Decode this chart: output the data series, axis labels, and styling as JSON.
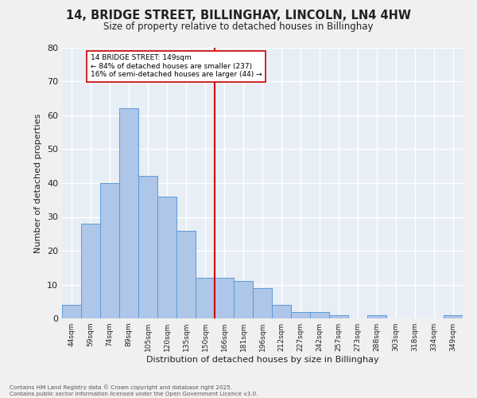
{
  "title": "14, BRIDGE STREET, BILLINGHAY, LINCOLN, LN4 4HW",
  "subtitle": "Size of property relative to detached houses in Billinghay",
  "xlabel": "Distribution of detached houses by size in Billinghay",
  "ylabel": "Number of detached properties",
  "bin_labels": [
    "44sqm",
    "59sqm",
    "74sqm",
    "89sqm",
    "105sqm",
    "120sqm",
    "135sqm",
    "150sqm",
    "166sqm",
    "181sqm",
    "196sqm",
    "212sqm",
    "227sqm",
    "242sqm",
    "257sqm",
    "273sqm",
    "288sqm",
    "303sqm",
    "318sqm",
    "334sqm",
    "349sqm"
  ],
  "bar_values": [
    4,
    28,
    40,
    62,
    42,
    36,
    26,
    12,
    12,
    11,
    9,
    4,
    2,
    2,
    1,
    0,
    1,
    0,
    0,
    0,
    1
  ],
  "bar_color": "#aec6e8",
  "bar_edge_color": "#5b9bd5",
  "vline_color": "#cc0000",
  "annotation_title": "14 BRIDGE STREET: 149sqm",
  "annotation_line1": "← 84% of detached houses are smaller (237)",
  "annotation_line2": "16% of semi-detached houses are larger (44) →",
  "annotation_box_color": "#ffffff",
  "annotation_box_edge": "#cc0000",
  "ylim": [
    0,
    80
  ],
  "yticks": [
    0,
    10,
    20,
    30,
    40,
    50,
    60,
    70,
    80
  ],
  "plot_bg_color": "#e8eef5",
  "fig_bg_color": "#f0f0f0",
  "grid_color": "#ffffff",
  "footer_line1": "Contains HM Land Registry data © Crown copyright and database right 2025.",
  "footer_line2": "Contains public sector information licensed under the Open Government Licence v3.0."
}
